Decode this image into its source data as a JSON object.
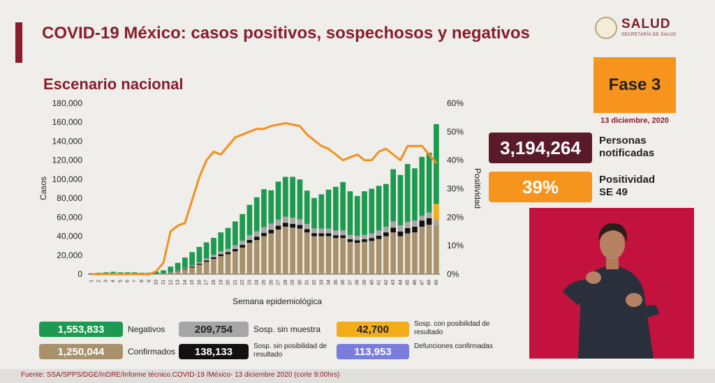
{
  "header": {
    "title": "COVID-19 México: casos positivos, sospechosos y negativos",
    "subtitle": "Escenario nacional",
    "logo_text": "SALUD",
    "logo_sub": "SECRETARÍA DE SALUD"
  },
  "phase": {
    "label": "Fase 3",
    "date": "13 diciembre, 2020"
  },
  "stats": {
    "notified_value": "3,194,264",
    "notified_label_1": "Personas",
    "notified_label_2": "notificadas",
    "positivity_value": "39%",
    "positivity_label_1": "Positividad",
    "positivity_label_2": "SE 49"
  },
  "legend": {
    "negativos_value": "1,553,833",
    "negativos_label": "Negativos",
    "confirmados_value": "1,250,044",
    "confirmados_label": "Confirmados",
    "sin_muestra_value": "209,754",
    "sin_muestra_label": "Sosp. sin muestra",
    "sin_posibilidad_value": "138,133",
    "sin_posibilidad_label": "Sosp. sin posibilidad de resultado",
    "con_posibilidad_value": "42,700",
    "con_posibilidad_label": "Sosp. con posibilidad de resultado",
    "defunciones_value": "113,953",
    "defunciones_label": "Defunciones confirmadas"
  },
  "footer": {
    "source": "Fuente: SSA/SPPS/DGE/InDRE/Informe técnico.COVID-19 /México- 13 diciembre 2020 (corte 9:00hrs)"
  },
  "colors": {
    "negativos": "#1e9a50",
    "confirmados": "#a8916b",
    "sin_muestra": "#a6a6a6",
    "sin_posibilidad": "#111111",
    "con_posibilidad": "#f2ad1c",
    "defunciones": "#7a7ddb",
    "positividad": "#f2901e",
    "maroon": "#8a1c2c"
  },
  "chart_data": {
    "type": "bar",
    "stacked": true,
    "xlabel": "Semana epidemiológica",
    "ylabel": "Casos",
    "y2label": "Positividad",
    "ylim": [
      0,
      180000
    ],
    "y2lim": [
      0,
      60
    ],
    "yticks": [
      "0",
      "20,000",
      "40,000",
      "60,000",
      "80,000",
      "100,000",
      "120,000",
      "140,000",
      "160,000",
      "180,000"
    ],
    "y2ticks": [
      "0%",
      "10%",
      "20%",
      "30%",
      "40%",
      "50%",
      "60%"
    ],
    "categories": [
      "1",
      "2",
      "3",
      "4",
      "5",
      "6",
      "7",
      "8",
      "9",
      "10",
      "11",
      "12",
      "13",
      "14",
      "15",
      "16",
      "17",
      "18",
      "19",
      "20",
      "21",
      "22",
      "23",
      "24",
      "25",
      "26",
      "27",
      "28",
      "29",
      "30",
      "31",
      "32",
      "33",
      "34",
      "35",
      "36",
      "37",
      "38",
      "39",
      "40",
      "41",
      "42",
      "43",
      "44",
      "45",
      "46",
      "47",
      "48",
      "49"
    ],
    "series": [
      {
        "name": "Confirmados",
        "values": [
          0,
          0,
          0,
          0,
          0,
          0,
          0,
          0,
          0,
          100,
          400,
          1500,
          3000,
          5000,
          7000,
          10000,
          13000,
          16000,
          19000,
          21000,
          24000,
          28000,
          33000,
          36000,
          40000,
          43000,
          47000,
          50000,
          49000,
          48000,
          44000,
          40000,
          40000,
          40000,
          38000,
          38000,
          34000,
          33000,
          34000,
          35000,
          37000,
          40000,
          44000,
          40000,
          43000,
          44000,
          50000,
          52000,
          52000
        ]
      },
      {
        "name": "Sosp. sin posibilidad de resultado",
        "values": [
          0,
          0,
          0,
          0,
          0,
          0,
          0,
          0,
          0,
          0,
          0,
          200,
          400,
          700,
          1000,
          1200,
          1500,
          1800,
          2000,
          2200,
          2500,
          2800,
          3000,
          3500,
          3500,
          3800,
          4000,
          4000,
          4000,
          3800,
          3500,
          3200,
          3100,
          3000,
          3000,
          3000,
          2800,
          2800,
          2800,
          3000,
          3500,
          4000,
          5000,
          5000,
          5500,
          6000,
          6500,
          7000,
          0
        ]
      },
      {
        "name": "Sosp. sin muestra",
        "values": [
          0,
          0,
          0,
          0,
          0,
          0,
          0,
          0,
          0,
          0,
          200,
          300,
          500,
          800,
          1200,
          1500,
          2000,
          2500,
          3000,
          3500,
          4000,
          4500,
          5000,
          5500,
          6000,
          6500,
          6500,
          6500,
          6500,
          6000,
          5500,
          5000,
          5000,
          5000,
          5000,
          5000,
          4500,
          4500,
          4500,
          5000,
          5500,
          6000,
          6500,
          6500,
          6500,
          6500,
          5000,
          6000,
          5000
        ]
      },
      {
        "name": "Sosp. con posibilidad de resultado",
        "values": [
          0,
          0,
          0,
          0,
          0,
          0,
          0,
          0,
          0,
          0,
          0,
          0,
          0,
          0,
          0,
          0,
          0,
          0,
          0,
          0,
          0,
          0,
          0,
          0,
          0,
          0,
          0,
          0,
          0,
          0,
          0,
          0,
          0,
          0,
          0,
          0,
          0,
          0,
          0,
          0,
          0,
          0,
          0,
          0,
          0,
          0,
          0,
          0,
          17000
        ]
      },
      {
        "name": "Negativos",
        "values": [
          1000,
          1500,
          2000,
          2500,
          2000,
          2000,
          2000,
          1500,
          1500,
          2500,
          3500,
          6000,
          8000,
          11000,
          14000,
          16000,
          17000,
          18000,
          20000,
          22000,
          25000,
          28000,
          32000,
          36000,
          40000,
          35000,
          40000,
          42000,
          43000,
          42000,
          35000,
          32000,
          36000,
          41000,
          46000,
          51000,
          46000,
          42000,
          46000,
          47000,
          47000,
          45000,
          55000,
          53000,
          61000,
          55000,
          62000,
          63000,
          84000
        ]
      },
      {
        "name": "Positividad",
        "axis": "y2",
        "type": "line",
        "values": [
          0,
          0,
          0,
          0,
          0,
          0,
          0,
          0,
          0,
          1,
          4,
          15,
          17,
          18,
          26,
          34,
          40,
          43,
          42,
          45,
          48,
          49,
          50,
          51,
          51,
          52,
          52.5,
          53,
          52.5,
          52,
          49,
          47,
          45,
          44,
          42,
          40,
          41,
          42,
          40,
          40,
          43,
          44,
          42,
          40,
          45,
          45,
          45,
          42,
          39
        ]
      }
    ]
  }
}
